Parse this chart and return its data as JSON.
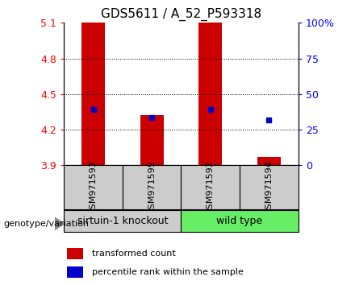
{
  "title": "GDS5611 / A_52_P593318",
  "samples": [
    "GSM971593",
    "GSM971595",
    "GSM971592",
    "GSM971594"
  ],
  "bar_tops": [
    5.1,
    4.32,
    5.1,
    3.97
  ],
  "bar_bottoms": [
    3.9,
    3.9,
    3.9,
    3.9
  ],
  "blue_values": [
    4.37,
    4.3,
    4.37,
    4.28
  ],
  "ylim": [
    3.9,
    5.1
  ],
  "y_ticks_left": [
    3.9,
    4.2,
    4.5,
    4.8,
    5.1
  ],
  "y_ticks_right": [
    0,
    25,
    50,
    75,
    100
  ],
  "y_ticks_right_vals": [
    3.9,
    4.2,
    4.5,
    4.8,
    5.1
  ],
  "grid_lines": [
    4.8,
    4.5,
    4.2
  ],
  "bar_color": "#cc0000",
  "blue_color": "#0000cc",
  "group1_label": "sirtuin-1 knockout",
  "group2_label": "wild type",
  "group1_indices": [
    0,
    1
  ],
  "group2_indices": [
    2,
    3
  ],
  "group1_color": "#cccccc",
  "group2_color": "#66ee66",
  "legend_red": "transformed count",
  "legend_blue": "percentile rank within the sample",
  "genotype_label": "genotype/variation",
  "bar_width": 0.4,
  "title_fontsize": 11
}
